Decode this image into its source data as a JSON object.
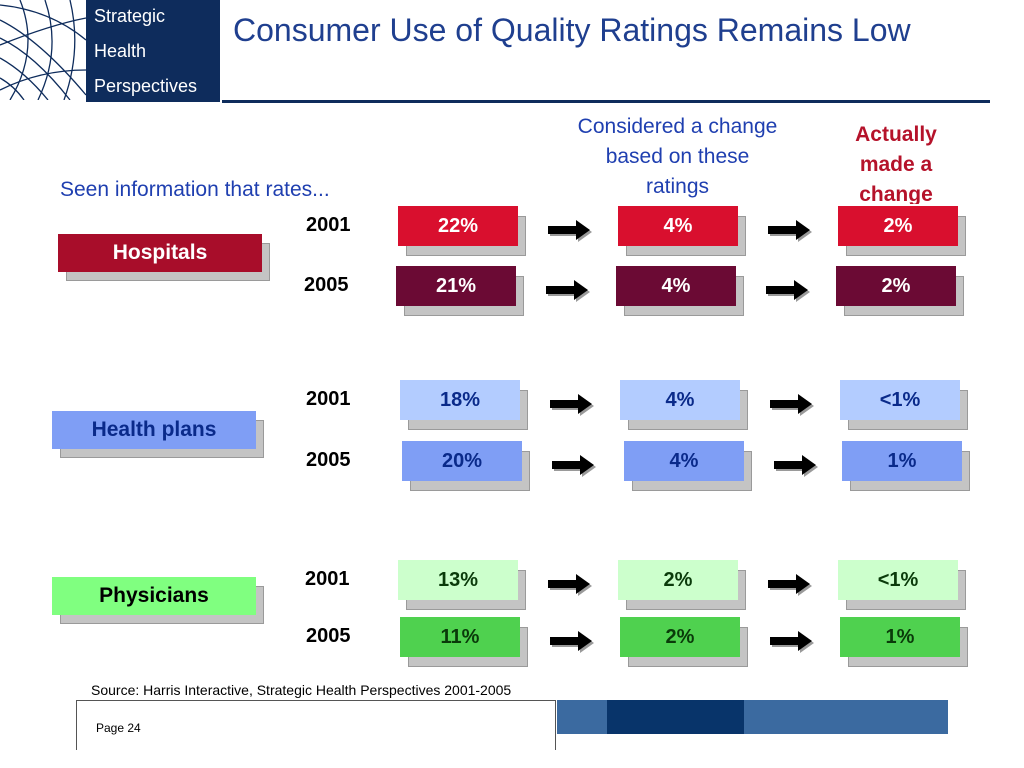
{
  "logo": {
    "line1": "Strategic",
    "line2": "Health",
    "line3": "Perspectives"
  },
  "title": "Consumer Use of Quality Ratings Remains Low",
  "headers": {
    "seen": "Seen information that rates...",
    "considered": "Considered a change based on these ratings",
    "actually": "Actually made a change"
  },
  "groups": [
    {
      "name": "Hospitals",
      "rows": [
        {
          "year": "2001",
          "seen": "22%",
          "considered": "4%",
          "actually": "2%"
        },
        {
          "year": "2005",
          "seen": "21%",
          "considered": "4%",
          "actually": "2%"
        }
      ]
    },
    {
      "name": "Health plans",
      "rows": [
        {
          "year": "2001",
          "seen": "18%",
          "considered": "4%",
          "actually": "<1%"
        },
        {
          "year": "2005",
          "seen": "20%",
          "considered": "4%",
          "actually": "1%"
        }
      ]
    },
    {
      "name": "Physicians",
      "rows": [
        {
          "year": "2001",
          "seen": "13%",
          "considered": "2%",
          "actually": "<1%"
        },
        {
          "year": "2005",
          "seen": "11%",
          "considered": "2%",
          "actually": "1%"
        }
      ]
    }
  ],
  "colors": {
    "hospital_2001": "#d90f2e",
    "hospital_2005": "#6b0a34",
    "hospital_label": "#a80d2a",
    "plans_2001": "#b3ccff",
    "plans_2005": "#7f9ef5",
    "plans_label": "#7f9ef5",
    "phys_2001": "#ccffcc",
    "phys_2005": "#4fd14f",
    "phys_label": "#80ff80"
  },
  "source": "Source: Harris Interactive, Strategic Health Perspectives 2001-2005",
  "page": "Page 24"
}
